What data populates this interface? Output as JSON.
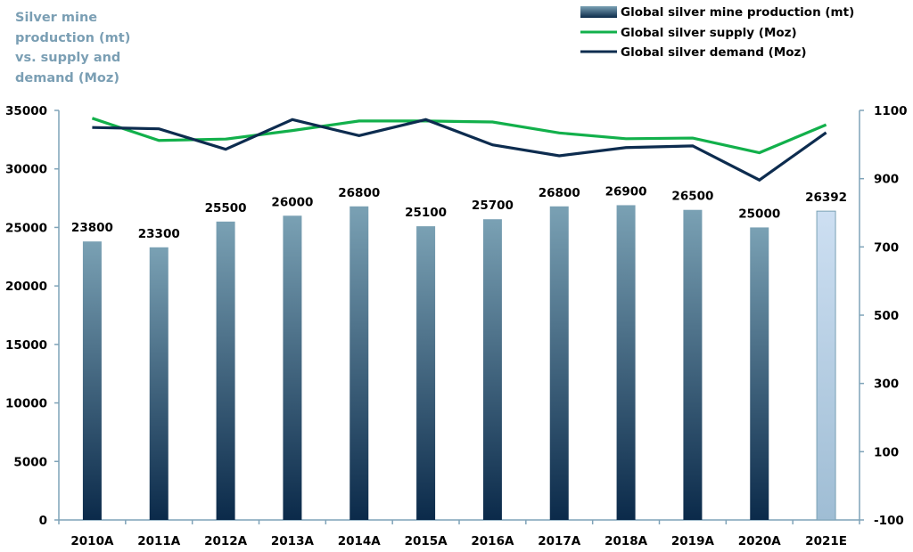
{
  "chart_data": {
    "type": "bar+line",
    "title": "Silver mine production (mt) vs. supply and demand (Moz)",
    "categories": [
      "2010A",
      "2011A",
      "2012A",
      "2013A",
      "2014A",
      "2015A",
      "2016A",
      "2017A",
      "2018A",
      "2019A",
      "2020A",
      "2021E"
    ],
    "series": [
      {
        "name": "Global silver mine production (mt)",
        "type": "bar",
        "axis": "left",
        "values": [
          23800,
          23300,
          25500,
          26000,
          26800,
          25100,
          25700,
          26800,
          26900,
          26500,
          25000,
          26392
        ],
        "color_top": "#7aa1b4",
        "color_bottom": "#0b2a4a",
        "estimate_color": "#c5d8ee"
      },
      {
        "name": "Global silver supply (Moz)",
        "type": "line",
        "axis": "right",
        "values": [
          1077,
          1012,
          1016,
          1041,
          1069,
          1069,
          1066,
          1034,
          1017,
          1019,
          976,
          1058
        ],
        "color": "#12b04b"
      },
      {
        "name": "Global silver demand (Moz)",
        "type": "line",
        "axis": "right",
        "values": [
          1050,
          1046,
          986,
          1073,
          1026,
          1073,
          999,
          967,
          991,
          996,
          896,
          1035
        ],
        "color": "#0d2c4f"
      }
    ],
    "left_axis": {
      "ylim": [
        0,
        35000
      ],
      "ticks": [
        "0",
        "5000",
        "10000",
        "15000",
        "20000",
        "25000",
        "30000",
        "35000"
      ]
    },
    "right_axis": {
      "ylim": [
        -100,
        1100
      ],
      "ticks": [
        "-100",
        "100",
        "300",
        "500",
        "700",
        "900",
        "1100"
      ]
    },
    "legend_position": "top-right",
    "grid": false,
    "axis_color": "#7fa3b8"
  }
}
